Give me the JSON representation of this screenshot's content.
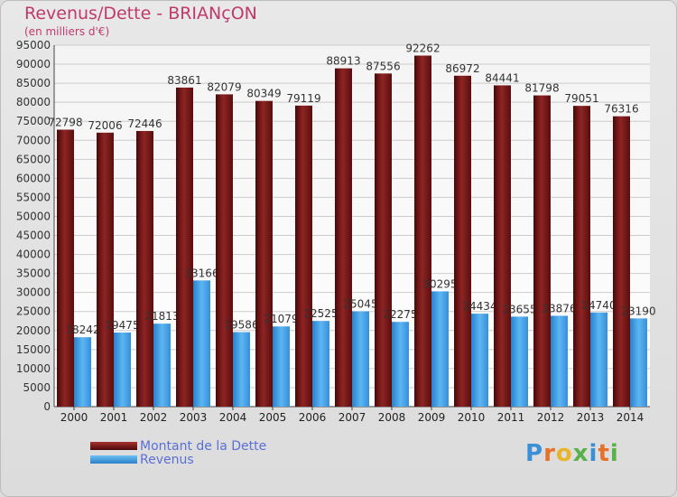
{
  "header": {
    "title": "Revenus/Dette - BRIANçON",
    "subtitle": "(en milliers d'€)"
  },
  "colors": {
    "dette": "#8b1e1e",
    "revenus": "#3a98e0",
    "label_text": "#333333",
    "title": "#c0396a"
  },
  "legend": {
    "items": [
      {
        "label": "Montant de la Dette",
        "color": "#7a1515"
      },
      {
        "label": "Revenus",
        "color": "#3a98e0"
      }
    ]
  },
  "logo": {
    "text": "Proxiti"
  },
  "chart_data": {
    "type": "bar",
    "categories": [
      "2000",
      "2001",
      "2002",
      "2003",
      "2004",
      "2005",
      "2006",
      "2007",
      "2008",
      "2009",
      "2010",
      "2011",
      "2012",
      "2013",
      "2014"
    ],
    "series": [
      {
        "name": "Montant de la Dette",
        "values": [
          72798,
          72006,
          72446,
          83861,
          82079,
          80349,
          79119,
          88913,
          87556,
          92262,
          86972,
          84441,
          81798,
          79051,
          76316
        ]
      },
      {
        "name": "Revenus",
        "values": [
          18242,
          19475,
          21813,
          33166,
          19586,
          21079,
          22525,
          25045,
          22275,
          30295,
          24434,
          23655,
          23876,
          24740,
          23190
        ]
      }
    ],
    "ylim": [
      0,
      95000
    ],
    "yticks": [
      0,
      5000,
      10000,
      15000,
      20000,
      25000,
      30000,
      35000,
      40000,
      45000,
      50000,
      55000,
      60000,
      65000,
      70000,
      75000,
      80000,
      85000,
      90000,
      95000
    ],
    "grid": true,
    "legend_position": "bottom-left"
  }
}
